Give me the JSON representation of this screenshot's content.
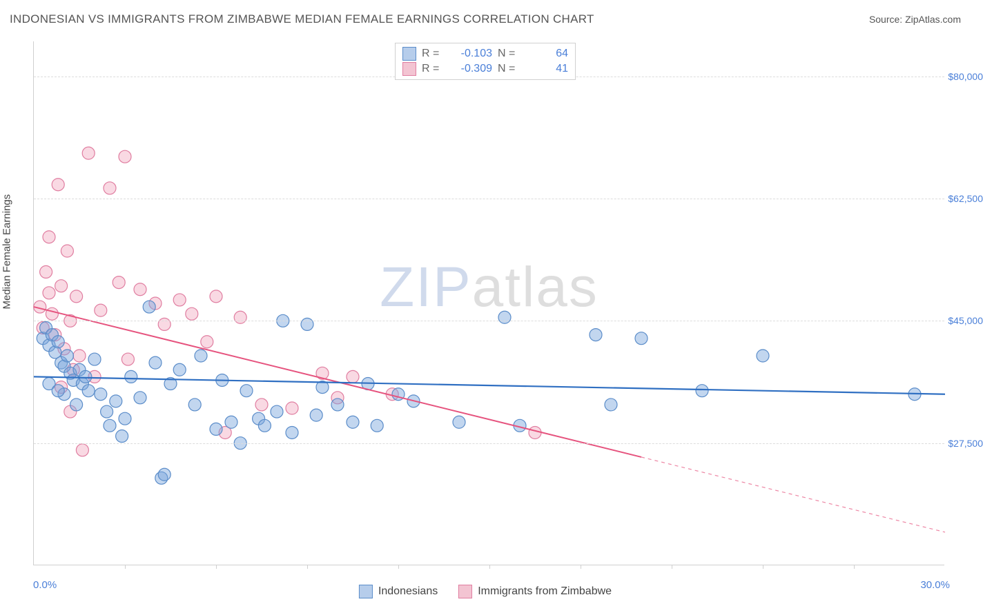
{
  "title": "INDONESIAN VS IMMIGRANTS FROM ZIMBABWE MEDIAN FEMALE EARNINGS CORRELATION CHART",
  "source": "Source: ZipAtlas.com",
  "y_axis": {
    "title": "Median Female Earnings",
    "min": 10000,
    "max": 85000,
    "ticks": [
      27500,
      45000,
      62500,
      80000
    ],
    "tick_labels": [
      "$27,500",
      "$45,000",
      "$62,500",
      "$80,000"
    ]
  },
  "x_axis": {
    "min": 0.0,
    "max": 30.0,
    "min_label": "0.0%",
    "max_label": "30.0%",
    "inner_ticks": [
      3,
      6,
      9,
      12,
      15,
      18,
      21,
      24,
      27
    ]
  },
  "watermark": {
    "part1": "ZIP",
    "part2": "atlas"
  },
  "series": {
    "indonesians": {
      "label": "Indonesians",
      "R": "-0.103",
      "N": "64",
      "marker_fill": "rgba(120,163,220,0.45)",
      "marker_stroke": "#5a8cc9",
      "line_color": "#2f6fc2",
      "line_width": 2.2,
      "swatch_fill": "#b6cdeb",
      "swatch_border": "#5a8cc9",
      "trend": {
        "x1": 0.0,
        "y1": 37000,
        "x2": 30.0,
        "y2": 34500
      },
      "trend_dash_x": 30.0,
      "points": [
        [
          0.3,
          42500
        ],
        [
          0.4,
          44000
        ],
        [
          0.5,
          41500
        ],
        [
          0.6,
          43000
        ],
        [
          0.7,
          40500
        ],
        [
          0.8,
          42000
        ],
        [
          0.9,
          39000
        ],
        [
          1.0,
          38500
        ],
        [
          1.1,
          40000
        ],
        [
          1.2,
          37500
        ],
        [
          1.3,
          36500
        ],
        [
          1.5,
          38000
        ],
        [
          1.6,
          36000
        ],
        [
          1.8,
          35000
        ],
        [
          2.0,
          39500
        ],
        [
          2.2,
          34500
        ],
        [
          2.4,
          32000
        ],
        [
          2.7,
          33500
        ],
        [
          3.0,
          31000
        ],
        [
          3.2,
          37000
        ],
        [
          3.5,
          34000
        ],
        [
          3.8,
          47000
        ],
        [
          4.0,
          39000
        ],
        [
          4.2,
          22500
        ],
        [
          4.3,
          23000
        ],
        [
          4.5,
          36000
        ],
        [
          4.8,
          38000
        ],
        [
          5.3,
          33000
        ],
        [
          5.5,
          40000
        ],
        [
          6.0,
          29500
        ],
        [
          6.2,
          36500
        ],
        [
          6.5,
          30500
        ],
        [
          6.8,
          27500
        ],
        [
          7.0,
          35000
        ],
        [
          7.4,
          31000
        ],
        [
          7.6,
          30000
        ],
        [
          8.0,
          32000
        ],
        [
          8.2,
          45000
        ],
        [
          8.5,
          29000
        ],
        [
          9.0,
          44500
        ],
        [
          9.3,
          31500
        ],
        [
          9.5,
          35500
        ],
        [
          10.0,
          33000
        ],
        [
          10.5,
          30500
        ],
        [
          11.0,
          36000
        ],
        [
          11.3,
          30000
        ],
        [
          12.0,
          34500
        ],
        [
          12.5,
          33500
        ],
        [
          14.0,
          30500
        ],
        [
          15.5,
          45500
        ],
        [
          16.0,
          30000
        ],
        [
          18.5,
          43000
        ],
        [
          19.0,
          33000
        ],
        [
          20.0,
          42500
        ],
        [
          22.0,
          35000
        ],
        [
          24.0,
          40000
        ],
        [
          29.0,
          34500
        ],
        [
          0.5,
          36000
        ],
        [
          1.0,
          34500
        ],
        [
          1.4,
          33000
        ],
        [
          2.5,
          30000
        ],
        [
          0.8,
          35000
        ],
        [
          1.7,
          37000
        ],
        [
          2.9,
          28500
        ]
      ]
    },
    "zimbabwe": {
      "label": "Immigrants from Zimbabwe",
      "R": "-0.309",
      "N": "41",
      "marker_fill": "rgba(240,160,185,0.40)",
      "marker_stroke": "#e07da0",
      "line_color": "#e6537e",
      "line_width": 2.0,
      "swatch_fill": "#f3c4d2",
      "swatch_border": "#e07da0",
      "trend": {
        "x1": 0.0,
        "y1": 47000,
        "x2": 20.0,
        "y2": 25500
      },
      "trend_dash_to": {
        "x2": 30.0,
        "y2": 14750
      },
      "points": [
        [
          0.2,
          47000
        ],
        [
          0.3,
          44000
        ],
        [
          0.4,
          52000
        ],
        [
          0.5,
          49000
        ],
        [
          0.6,
          46000
        ],
        [
          0.7,
          43000
        ],
        [
          0.8,
          64500
        ],
        [
          0.9,
          50000
        ],
        [
          1.0,
          41000
        ],
        [
          1.1,
          55000
        ],
        [
          1.2,
          45000
        ],
        [
          1.3,
          38000
        ],
        [
          1.4,
          48500
        ],
        [
          1.5,
          40000
        ],
        [
          1.6,
          26500
        ],
        [
          1.8,
          69000
        ],
        [
          2.0,
          37000
        ],
        [
          2.2,
          46500
        ],
        [
          2.5,
          64000
        ],
        [
          2.8,
          50500
        ],
        [
          3.0,
          68500
        ],
        [
          3.1,
          39500
        ],
        [
          3.5,
          49500
        ],
        [
          4.0,
          47500
        ],
        [
          4.3,
          44500
        ],
        [
          4.8,
          48000
        ],
        [
          5.2,
          46000
        ],
        [
          5.7,
          42000
        ],
        [
          6.0,
          48500
        ],
        [
          6.3,
          29000
        ],
        [
          6.8,
          45500
        ],
        [
          7.5,
          33000
        ],
        [
          8.5,
          32500
        ],
        [
          9.5,
          37500
        ],
        [
          10.0,
          34000
        ],
        [
          10.5,
          37000
        ],
        [
          11.8,
          34500
        ],
        [
          16.5,
          29000
        ],
        [
          0.5,
          57000
        ],
        [
          0.9,
          35500
        ],
        [
          1.2,
          32000
        ]
      ]
    }
  },
  "legend_stat_labels": {
    "R": "R =",
    "N": "N ="
  },
  "marker_radius": 9
}
